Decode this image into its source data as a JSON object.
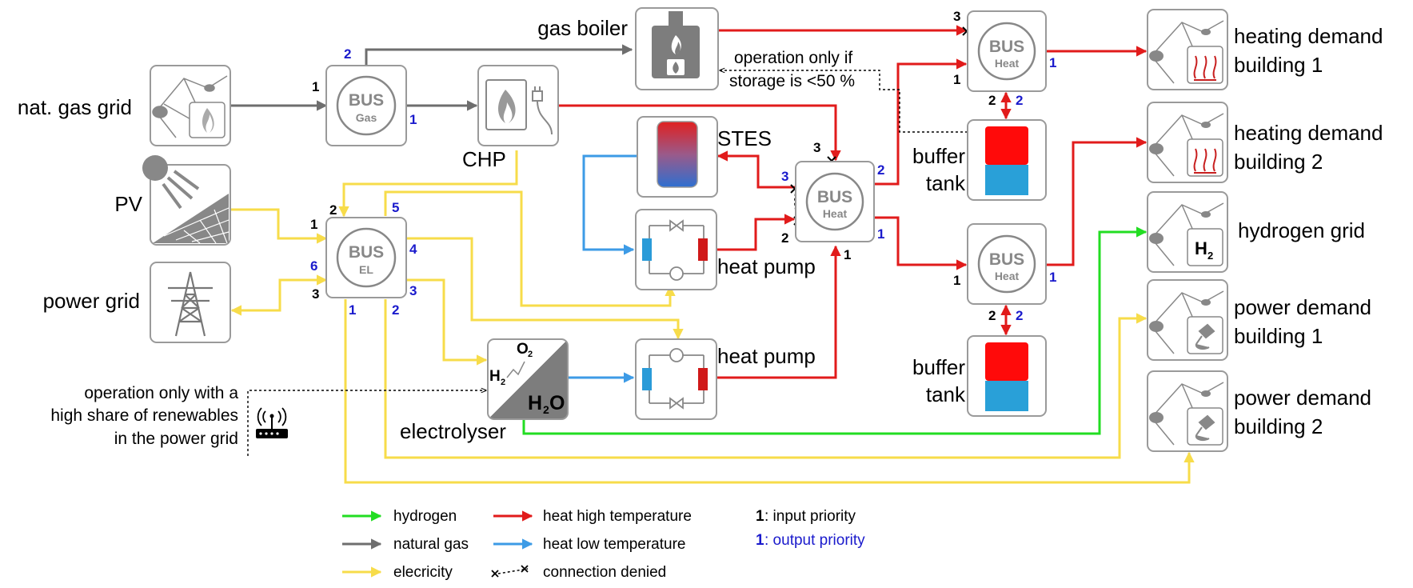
{
  "nodes": {
    "nat_gas_grid": "nat. gas grid",
    "pv": "PV",
    "power_grid": "power grid",
    "chp": "CHP",
    "gas_boiler": "gas boiler",
    "stes": "STES",
    "heat_pump_1": "heat pump",
    "heat_pump_2": "heat pump",
    "electrolyser": "electrolyser",
    "buffer_tank_1": [
      "buffer",
      "tank"
    ],
    "buffer_tank_2": [
      "buffer",
      "tank"
    ],
    "heating_demand_1": [
      "heating demand",
      "building 1"
    ],
    "heating_demand_2": [
      "heating demand",
      "building 2"
    ],
    "hydrogen_grid": "hydrogen grid",
    "power_demand_1": [
      "power demand",
      "building 1"
    ],
    "power_demand_2": [
      "power demand",
      "building 2"
    ]
  },
  "buses": {
    "title": "BUS",
    "gas": "Gas",
    "el": "EL",
    "heat": "Heat"
  },
  "icons": {
    "h2": "H",
    "h2_sub": "2",
    "h2o": "H",
    "h2o_sub": "2",
    "h2o_o": "O",
    "o2": "O",
    "o2_sub": "2"
  },
  "annotations": {
    "storage_note": [
      "operation only if",
      "storage is <50 %"
    ],
    "renewables_note": [
      "operation only with a",
      "high share of renewables",
      "in the power grid"
    ]
  },
  "priorities": {
    "gas_bus_in": "1",
    "gas_bus_out_top": "2",
    "gas_bus_out_right": "1",
    "el_in_chp": "2",
    "el_in_pv": "1",
    "el_in_grid": "3",
    "el_out_5": "5",
    "el_out_4": "4",
    "el_out_3": "3",
    "el_out_6": "6",
    "el_out_2": "2",
    "el_out_1": "1",
    "heat_mid_in_3": "3",
    "heat_mid_out_3": "3",
    "heat_mid_in_2": "2",
    "heat_mid_out_2": "2",
    "heat_mid_out_1": "1",
    "heat_mid_in_1": "1",
    "heat_top_in_3": "3",
    "heat_top_in_1": "1",
    "heat_top_out_1": "1",
    "heat_top_buf_in": "2",
    "heat_top_buf_out": "2",
    "heat_low_in_1": "1",
    "heat_low_out_1": "1",
    "heat_low_buf_in": "2",
    "heat_low_buf_out": "2"
  },
  "legend": {
    "hydrogen": "hydrogen",
    "natural_gas": "natural gas",
    "electricity": "elecricity",
    "heat_high": "heat high temperature",
    "heat_low": "heat low temperature",
    "denied": "connection denied",
    "input_key": "1",
    "input_text": ": input priority",
    "output_key": "1",
    "output_text": ": output priority"
  },
  "colors": {
    "hydrogen": "#22dd22",
    "natural_gas": "#6e6e6e",
    "electricity": "#f7dc4a",
    "heat_high": "#e11b1b",
    "heat_low": "#3d9be6",
    "output_priority": "#1a1acc",
    "box_border": "#9a9a9a",
    "tank_red": "#ff0a0a",
    "tank_blue": "#29a0d8"
  }
}
